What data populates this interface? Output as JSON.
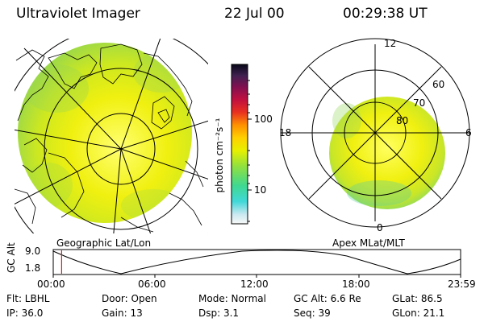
{
  "header": {
    "title": "Ultraviolet Imager",
    "date": "22 Jul 00",
    "time": "00:29:38 UT"
  },
  "colorbar": {
    "label": "photon cm⁻²s⁻¹",
    "tick_100": "100",
    "tick_10": "10"
  },
  "geo_panel": {
    "caption": "Geographic Lat/Lon"
  },
  "polar_panel": {
    "caption": "Apex MLat/MLT",
    "mlt_labels": {
      "top": "12",
      "left": "18",
      "right": "6",
      "bottom": "0"
    },
    "lat_labels": [
      "60",
      "70",
      "80"
    ]
  },
  "altitude_plot": {
    "ylabel": "GC Alt",
    "yticks": [
      "9.0",
      "1.8"
    ],
    "xticks": [
      "00:00",
      "06:00",
      "12:00",
      "18:00",
      "23:59"
    ],
    "current_time_fraction": 0.0206
  },
  "info": {
    "row1": {
      "flt": "Flt: LBHL",
      "door": "Door: Open",
      "mode": "Mode: Normal",
      "gcalt": "GC Alt: 6.6 Re",
      "glat": "GLat:  86.5"
    },
    "row2": {
      "ip": "IP: 36.0",
      "gain": "Gain: 13",
      "dsp": "Dsp:    3.1",
      "seq": "Seq: 39",
      "glon": "GLon:  21.1"
    }
  },
  "colors": {
    "image_yellow": "#f0f000",
    "image_green": "#b8e030",
    "image_cyan": "#40d8c0",
    "cursor": "#d02020"
  }
}
